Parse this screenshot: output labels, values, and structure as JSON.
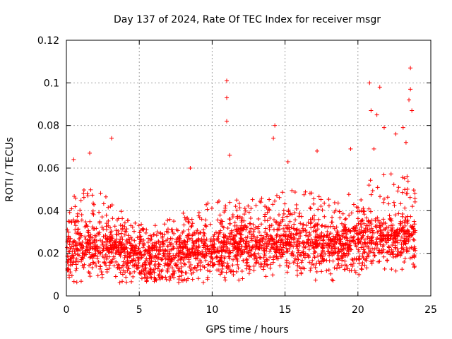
{
  "chart_data": {
    "type": "scatter",
    "title": "Day 137 of 2024, Rate Of TEC Index for receiver msgr",
    "xlabel": "GPS time / hours",
    "ylabel": "ROTI / TECUs",
    "xlim": [
      0,
      25
    ],
    "ylim": [
      0,
      0.12
    ],
    "x_ticks": [
      0,
      5,
      10,
      15,
      20,
      25
    ],
    "y_ticks": [
      0,
      0.02,
      0.04,
      0.06,
      0.08,
      0.1,
      0.12
    ],
    "x_tick_labels": [
      "0",
      "5",
      "10",
      "15",
      "20",
      "25"
    ],
    "y_tick_labels": [
      "0",
      "0.02",
      "0.04",
      "0.06",
      "0.08",
      "0.1",
      "0.12"
    ],
    "grid": true,
    "marker": "+",
    "color": "#ff0000",
    "series": [
      {
        "name": "ROTI",
        "envelope": {
          "hours": [
            0,
            1,
            2,
            3,
            4,
            5,
            6,
            7,
            8,
            9,
            10,
            11,
            12,
            13,
            14,
            15,
            16,
            17,
            18,
            19,
            20,
            21,
            22,
            23,
            24
          ],
          "median": [
            0.02,
            0.022,
            0.022,
            0.021,
            0.02,
            0.018,
            0.017,
            0.017,
            0.018,
            0.019,
            0.02,
            0.021,
            0.022,
            0.022,
            0.023,
            0.024,
            0.024,
            0.023,
            0.022,
            0.022,
            0.024,
            0.026,
            0.026,
            0.027,
            0.025
          ],
          "upper": [
            0.045,
            0.05,
            0.05,
            0.046,
            0.04,
            0.035,
            0.033,
            0.036,
            0.04,
            0.042,
            0.045,
            0.046,
            0.046,
            0.045,
            0.048,
            0.05,
            0.05,
            0.048,
            0.046,
            0.046,
            0.052,
            0.056,
            0.058,
            0.06,
            0.05
          ]
        },
        "peaks": [
          {
            "x": 0.5,
            "y": 0.064
          },
          {
            "x": 1.6,
            "y": 0.067
          },
          {
            "x": 3.1,
            "y": 0.074
          },
          {
            "x": 8.5,
            "y": 0.06
          },
          {
            "x": 11.0,
            "y": 0.101
          },
          {
            "x": 11.0,
            "y": 0.093
          },
          {
            "x": 11.0,
            "y": 0.082
          },
          {
            "x": 11.2,
            "y": 0.066
          },
          {
            "x": 14.3,
            "y": 0.08
          },
          {
            "x": 14.2,
            "y": 0.074
          },
          {
            "x": 15.2,
            "y": 0.063
          },
          {
            "x": 17.2,
            "y": 0.068
          },
          {
            "x": 19.5,
            "y": 0.069
          },
          {
            "x": 20.8,
            "y": 0.1
          },
          {
            "x": 20.9,
            "y": 0.087
          },
          {
            "x": 21.5,
            "y": 0.098
          },
          {
            "x": 21.3,
            "y": 0.085
          },
          {
            "x": 21.8,
            "y": 0.079
          },
          {
            "x": 23.1,
            "y": 0.079
          },
          {
            "x": 23.6,
            "y": 0.107
          },
          {
            "x": 23.6,
            "y": 0.097
          },
          {
            "x": 23.5,
            "y": 0.092
          },
          {
            "x": 23.7,
            "y": 0.087
          },
          {
            "x": 23.3,
            "y": 0.072
          },
          {
            "x": 22.6,
            "y": 0.076
          },
          {
            "x": 21.1,
            "y": 0.069
          }
        ]
      }
    ]
  }
}
